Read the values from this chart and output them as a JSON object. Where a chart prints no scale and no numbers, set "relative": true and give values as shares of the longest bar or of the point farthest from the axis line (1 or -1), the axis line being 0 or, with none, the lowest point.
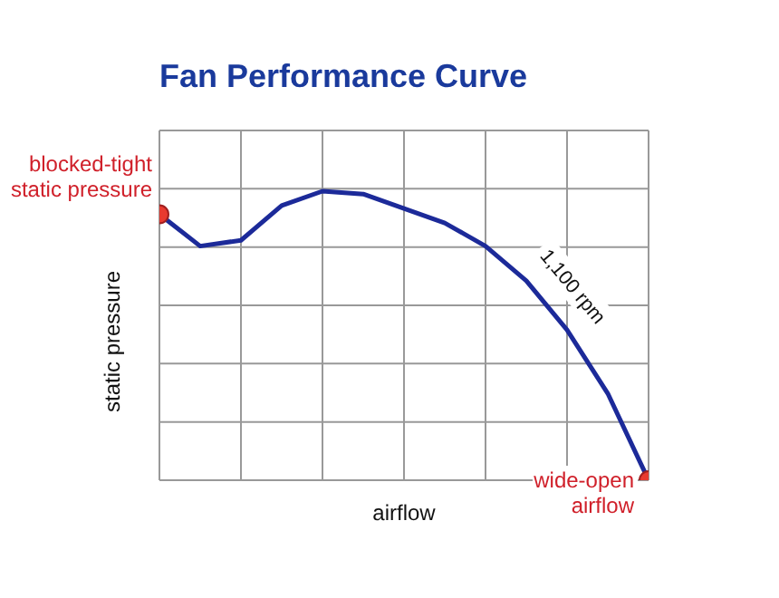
{
  "chart_data": {
    "type": "line",
    "title": "Fan Performance Curve",
    "xlabel": "airflow",
    "ylabel": "static pressure",
    "relative": true,
    "grid": true,
    "line_style": "solid",
    "categories": [
      null,
      null,
      null,
      null,
      null,
      null,
      null,
      null,
      null,
      null,
      null,
      null,
      null
    ],
    "series": [
      {
        "name": "1,100 rpm",
        "color": "#1c2a99",
        "values": [
          0.92,
          0.81,
          0.83,
          0.95,
          1.0,
          0.99,
          0.94,
          0.89,
          0.81,
          0.69,
          0.52,
          0.3,
          0
        ]
      }
    ],
    "annotations": [
      "blocked-tight static pressure",
      "wide-open airflow"
    ]
  }
}
